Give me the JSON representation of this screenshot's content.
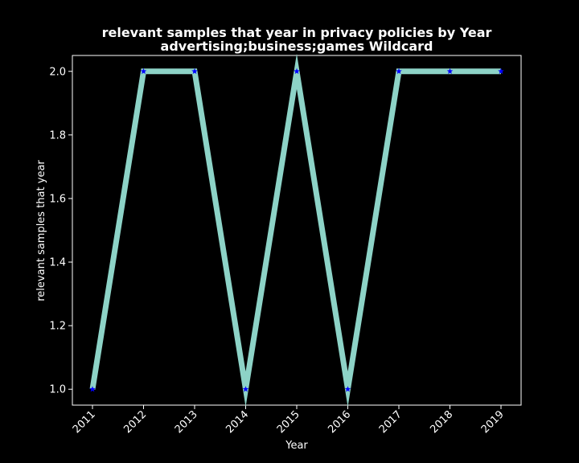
{
  "chart_data": {
    "type": "line",
    "title_line1": "relevant samples that year in privacy policies by Year",
    "title_line2": "advertising;business;games Wildcard",
    "xlabel": "Year",
    "ylabel": "relevant samples that year",
    "x": [
      "2011",
      "2012",
      "2013",
      "2014",
      "2015",
      "2016",
      "2017",
      "2018",
      "2019"
    ],
    "y": [
      1.0,
      2.0,
      2.0,
      1.0,
      2.0,
      1.0,
      2.0,
      2.0,
      2.0
    ],
    "yticks": [
      "1.0",
      "1.2",
      "1.4",
      "1.6",
      "1.8",
      "2.0"
    ],
    "ylim": [
      0.95,
      2.05
    ],
    "grid": false,
    "legend": "none",
    "line_color": "#8dd3c7",
    "marker_color": "#0000ff",
    "marker": "star",
    "background": "#000000",
    "foreground": "#ffffff"
  }
}
